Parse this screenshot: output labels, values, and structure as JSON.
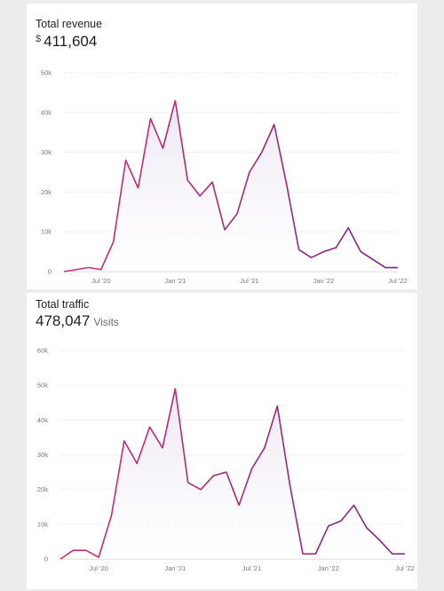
{
  "revenue_card": {
    "title": "Total revenue",
    "currency": "$",
    "total": "411,604"
  },
  "traffic_card": {
    "title": "Total traffic",
    "total": "478,047",
    "unit": "Visits"
  },
  "colors": {
    "line_start": "#cf2f6e",
    "line_end": "#7b2680",
    "area": "#ece7f2"
  },
  "chart_data": [
    {
      "type": "area",
      "title": "Total revenue",
      "x": [
        "2020-04",
        "2020-05",
        "2020-06",
        "2020-07",
        "2020-08",
        "2020-09",
        "2020-10",
        "2020-11",
        "2020-12",
        "2021-01",
        "2021-02",
        "2021-03",
        "2021-04",
        "2021-05",
        "2021-06",
        "2021-07",
        "2021-08",
        "2021-09",
        "2021-10",
        "2021-11",
        "2021-12",
        "2022-01",
        "2022-02",
        "2022-03",
        "2022-04",
        "2022-05",
        "2022-06",
        "2022-07"
      ],
      "values": [
        0,
        500,
        1000,
        500,
        7500,
        28000,
        21000,
        38500,
        31000,
        43000,
        23000,
        19000,
        22500,
        10500,
        14500,
        25000,
        30000,
        37000,
        22000,
        5500,
        3500,
        5000,
        6000,
        11000,
        5000,
        3000,
        1000,
        1000
      ],
      "y_ticks": [
        "0",
        "10k",
        "20k",
        "30k",
        "40k",
        "50k"
      ],
      "x_ticks": [
        {
          "date": "2020-07",
          "label": "Jul '20"
        },
        {
          "date": "2021-01",
          "label": "Jan '21"
        },
        {
          "date": "2021-07",
          "label": "Jul '21"
        },
        {
          "date": "2022-01",
          "label": "Jan '22"
        },
        {
          "date": "2022-07",
          "label": "Jul '22"
        }
      ],
      "ylim": [
        0,
        50000
      ],
      "grid": true
    },
    {
      "type": "area",
      "title": "Total traffic",
      "x": [
        "2020-04",
        "2020-05",
        "2020-06",
        "2020-07",
        "2020-08",
        "2020-09",
        "2020-10",
        "2020-11",
        "2020-12",
        "2021-01",
        "2021-02",
        "2021-03",
        "2021-04",
        "2021-05",
        "2021-06",
        "2021-07",
        "2021-08",
        "2021-09",
        "2021-10",
        "2021-11",
        "2021-12",
        "2022-01",
        "2022-02",
        "2022-03",
        "2022-04",
        "2022-05",
        "2022-06",
        "2022-07"
      ],
      "values": [
        0,
        2500,
        2500,
        500,
        12500,
        34000,
        27500,
        38000,
        32000,
        49000,
        22000,
        20000,
        24000,
        25000,
        15500,
        26000,
        32000,
        44000,
        21000,
        1500,
        1500,
        9500,
        11000,
        15500,
        9000,
        5500,
        1500,
        1500
      ],
      "y_ticks": [
        "0",
        "10k",
        "20k",
        "30k",
        "40k",
        "50k",
        "60k"
      ],
      "x_ticks": [
        {
          "date": "2020-07",
          "label": "Jul '20"
        },
        {
          "date": "2021-01",
          "label": "Jan '21"
        },
        {
          "date": "2021-07",
          "label": "Jul '21"
        },
        {
          "date": "2022-01",
          "label": "Jan '22"
        },
        {
          "date": "2022-07",
          "label": "Jul '22"
        }
      ],
      "ylim": [
        0,
        60000
      ],
      "grid": true
    }
  ]
}
